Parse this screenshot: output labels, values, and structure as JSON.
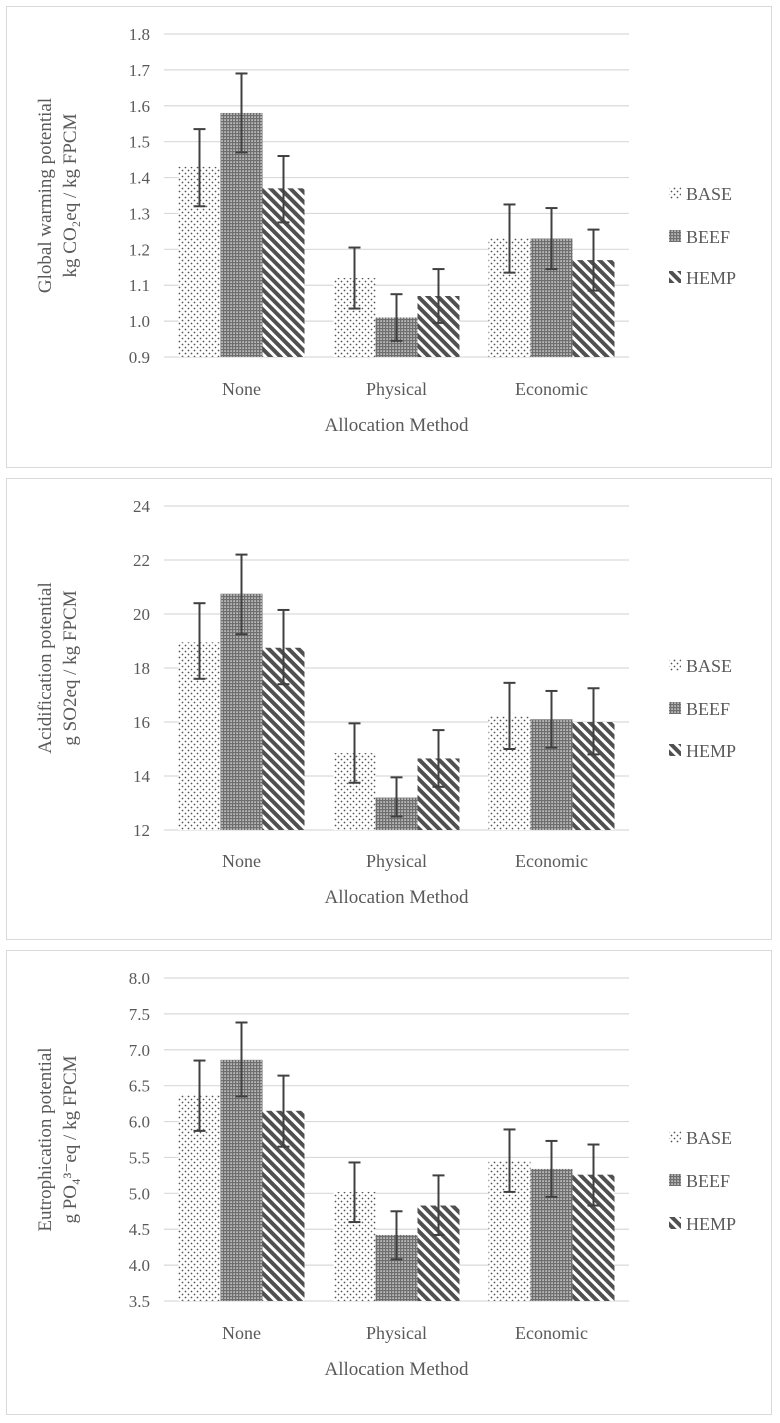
{
  "pattern_colors": {
    "base": "#555555",
    "beef": "#6e6e6e",
    "hemp": "#505050",
    "grid": "#d9d9d9",
    "text": "#595959",
    "error_bar": "#404040"
  },
  "chart_data": [
    {
      "type": "bar",
      "ylabel_line1": "Global warming potential",
      "ylabel_line2": "kg CO₂eq / kg FPCM",
      "xlabel": "Allocation Method",
      "categories": [
        "None",
        "Physical",
        "Economic"
      ],
      "ylim": [
        0.9,
        1.8
      ],
      "yticks": [
        "0.9",
        "1.0",
        "1.1",
        "1.2",
        "1.3",
        "1.4",
        "1.5",
        "1.6",
        "1.7",
        "1.8"
      ],
      "series": [
        {
          "name": "BASE",
          "pattern": "dots",
          "values": [
            1.43,
            1.12,
            1.23
          ],
          "err_low": [
            1.32,
            1.035,
            1.135
          ],
          "err_high": [
            1.535,
            1.205,
            1.325
          ]
        },
        {
          "name": "BEEF",
          "pattern": "grid",
          "values": [
            1.58,
            1.01,
            1.23
          ],
          "err_low": [
            1.47,
            0.945,
            1.145
          ],
          "err_high": [
            1.69,
            1.075,
            1.315
          ]
        },
        {
          "name": "HEMP",
          "pattern": "stripes",
          "values": [
            1.37,
            1.07,
            1.17
          ],
          "err_low": [
            1.275,
            0.995,
            1.085
          ],
          "err_high": [
            1.46,
            1.145,
            1.255
          ]
        }
      ],
      "legend": [
        "BASE",
        "BEEF",
        "HEMP"
      ]
    },
    {
      "type": "bar",
      "ylabel_line1": "Acidification potential",
      "ylabel_line2": "g SO2eq / kg FPCM",
      "xlabel": "Allocation Method",
      "categories": [
        "None",
        "Physical",
        "Economic"
      ],
      "ylim": [
        12,
        24
      ],
      "yticks": [
        "12",
        "14",
        "16",
        "18",
        "20",
        "22",
        "24"
      ],
      "series": [
        {
          "name": "BASE",
          "pattern": "dots",
          "values": [
            18.95,
            14.85,
            16.2
          ],
          "err_low": [
            17.6,
            13.75,
            15.0
          ],
          "err_high": [
            20.4,
            15.95,
            17.45
          ]
        },
        {
          "name": "BEEF",
          "pattern": "grid",
          "values": [
            20.75,
            13.2,
            16.1
          ],
          "err_low": [
            19.25,
            12.5,
            15.05
          ],
          "err_high": [
            22.2,
            13.95,
            17.15
          ]
        },
        {
          "name": "HEMP",
          "pattern": "stripes",
          "values": [
            18.75,
            14.65,
            16.0
          ],
          "err_low": [
            17.4,
            13.6,
            14.8
          ],
          "err_high": [
            20.15,
            15.7,
            17.25
          ]
        }
      ],
      "legend": [
        "BASE",
        "BEEF",
        "HEMP"
      ]
    },
    {
      "type": "bar",
      "ylabel_line1": "Eutrophication potential",
      "ylabel_line2": "g PO₄³⁻eq / kg FPCM",
      "xlabel": "Allocation Method",
      "categories": [
        "None",
        "Physical",
        "Economic"
      ],
      "ylim": [
        3.5,
        8.0
      ],
      "yticks": [
        "3.5",
        "4.0",
        "4.5",
        "5.0",
        "5.5",
        "6.0",
        "6.5",
        "7.0",
        "7.5",
        "8.0"
      ],
      "series": [
        {
          "name": "BASE",
          "pattern": "dots",
          "values": [
            6.37,
            5.02,
            5.45
          ],
          "err_low": [
            5.87,
            4.6,
            5.02
          ],
          "err_high": [
            6.85,
            5.43,
            5.89
          ]
        },
        {
          "name": "BEEF",
          "pattern": "grid",
          "values": [
            6.86,
            4.42,
            5.34
          ],
          "err_low": [
            6.35,
            4.08,
            4.95
          ],
          "err_high": [
            7.38,
            4.75,
            5.73
          ]
        },
        {
          "name": "HEMP",
          "pattern": "stripes",
          "values": [
            6.15,
            4.83,
            5.26
          ],
          "err_low": [
            5.65,
            4.42,
            4.83
          ],
          "err_high": [
            6.64,
            5.25,
            5.68
          ]
        }
      ],
      "legend": [
        "BASE",
        "BEEF",
        "HEMP"
      ]
    }
  ]
}
